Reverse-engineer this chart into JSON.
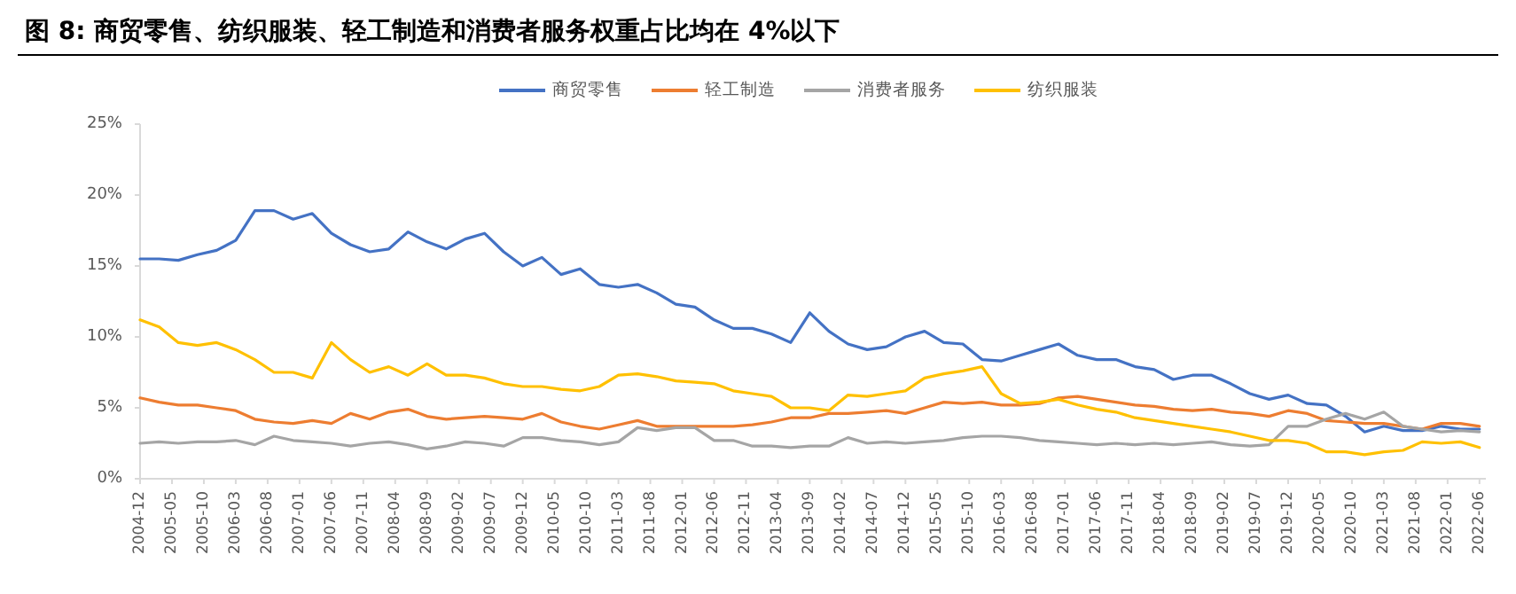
{
  "chart_data": {
    "type": "line",
    "title": "图 8: 商贸零售、纺织服装、轻工制造和消费者服务权重占比均在 4%以下",
    "x": [
      "2004-12",
      "2005-03",
      "2005-06",
      "2005-09",
      "2005-12",
      "2006-03",
      "2006-06",
      "2006-09",
      "2006-12",
      "2007-03",
      "2007-06",
      "2007-09",
      "2007-12",
      "2008-03",
      "2008-06",
      "2008-09",
      "2008-12",
      "2009-03",
      "2009-06",
      "2009-09",
      "2009-12",
      "2010-03",
      "2010-06",
      "2010-09",
      "2010-12",
      "2011-03",
      "2011-06",
      "2011-09",
      "2011-12",
      "2012-03",
      "2012-06",
      "2012-09",
      "2012-12",
      "2013-03",
      "2013-06",
      "2013-09",
      "2013-12",
      "2014-03",
      "2014-06",
      "2014-09",
      "2014-12",
      "2015-03",
      "2015-06",
      "2015-09",
      "2015-12",
      "2016-03",
      "2016-06",
      "2016-09",
      "2016-12",
      "2017-03",
      "2017-06",
      "2017-09",
      "2017-12",
      "2018-03",
      "2018-06",
      "2018-09",
      "2018-12",
      "2019-03",
      "2019-06",
      "2019-09",
      "2019-12",
      "2020-03",
      "2020-06",
      "2020-09",
      "2020-12",
      "2021-03",
      "2021-06",
      "2021-09",
      "2021-12",
      "2022-03",
      "2022-06"
    ],
    "series": [
      {
        "name": "商贸零售",
        "color": "#4472c4",
        "values": [
          15.5,
          15.5,
          15.4,
          15.8,
          16.1,
          16.8,
          18.9,
          18.9,
          18.3,
          18.7,
          17.3,
          16.5,
          16.0,
          16.2,
          17.4,
          16.7,
          16.2,
          16.9,
          17.3,
          16.0,
          15.0,
          15.6,
          14.4,
          14.8,
          13.7,
          13.5,
          13.7,
          13.1,
          12.3,
          12.1,
          11.2,
          10.6,
          10.6,
          10.2,
          9.6,
          11.7,
          10.4,
          9.5,
          9.1,
          9.3,
          10.0,
          10.4,
          9.6,
          9.5,
          8.4,
          8.3,
          8.7,
          9.1,
          9.5,
          8.7,
          8.4,
          8.4,
          7.9,
          7.7,
          7.0,
          7.3,
          7.3,
          6.7,
          6.0,
          5.6,
          5.9,
          5.3,
          5.2,
          4.4,
          3.3,
          3.7,
          3.4,
          3.4,
          3.7,
          3.5,
          3.5
        ]
      },
      {
        "name": "轻工制造",
        "color": "#ed7d31",
        "values": [
          5.7,
          5.4,
          5.2,
          5.2,
          5.0,
          4.8,
          4.2,
          4.0,
          3.9,
          4.1,
          3.9,
          4.6,
          4.2,
          4.7,
          4.9,
          4.4,
          4.2,
          4.3,
          4.4,
          4.3,
          4.2,
          4.6,
          4.0,
          3.7,
          3.5,
          3.8,
          4.1,
          3.7,
          3.7,
          3.7,
          3.7,
          3.7,
          3.8,
          4.0,
          4.3,
          4.3,
          4.6,
          4.6,
          4.7,
          4.8,
          4.6,
          5.0,
          5.4,
          5.3,
          5.4,
          5.2,
          5.2,
          5.3,
          5.7,
          5.8,
          5.6,
          5.4,
          5.2,
          5.1,
          4.9,
          4.8,
          4.9,
          4.7,
          4.6,
          4.4,
          4.8,
          4.6,
          4.1,
          4.0,
          3.9,
          3.9,
          3.7,
          3.5,
          3.9,
          3.9,
          3.7
        ]
      },
      {
        "name": "消费者服务",
        "color": "#a5a5a5",
        "values": [
          2.5,
          2.6,
          2.5,
          2.6,
          2.6,
          2.7,
          2.4,
          3.0,
          2.7,
          2.6,
          2.5,
          2.3,
          2.5,
          2.6,
          2.4,
          2.1,
          2.3,
          2.6,
          2.5,
          2.3,
          2.9,
          2.9,
          2.7,
          2.6,
          2.4,
          2.6,
          3.6,
          3.4,
          3.6,
          3.6,
          2.7,
          2.7,
          2.3,
          2.3,
          2.2,
          2.3,
          2.3,
          2.9,
          2.5,
          2.6,
          2.5,
          2.6,
          2.7,
          2.9,
          3.0,
          3.0,
          2.9,
          2.7,
          2.6,
          2.5,
          2.4,
          2.5,
          2.4,
          2.5,
          2.4,
          2.5,
          2.6,
          2.4,
          2.3,
          2.4,
          3.7,
          3.7,
          4.2,
          4.6,
          4.2,
          4.7,
          3.7,
          3.5,
          3.3,
          3.4,
          3.3
        ]
      },
      {
        "name": "纺织服装",
        "color": "#ffc000",
        "values": [
          11.2,
          10.7,
          9.6,
          9.4,
          9.6,
          9.1,
          8.4,
          7.5,
          7.5,
          7.1,
          9.6,
          8.4,
          7.5,
          7.9,
          7.3,
          8.1,
          7.3,
          7.3,
          7.1,
          6.7,
          6.5,
          6.5,
          6.3,
          6.2,
          6.5,
          7.3,
          7.4,
          7.2,
          6.9,
          6.8,
          6.7,
          6.2,
          6.0,
          5.8,
          5.0,
          5.0,
          4.8,
          5.9,
          5.8,
          6.0,
          6.2,
          7.1,
          7.4,
          7.6,
          7.9,
          6.0,
          5.3,
          5.4,
          5.6,
          5.2,
          4.9,
          4.7,
          4.3,
          4.1,
          3.9,
          3.7,
          3.5,
          3.3,
          3.0,
          2.7,
          2.7,
          2.5,
          1.9,
          1.9,
          1.7,
          1.9,
          2.0,
          2.6,
          2.5,
          2.6,
          2.2
        ]
      }
    ],
    "xlim": [
      "2004-12",
      "2022-07"
    ],
    "xticks": [
      "2004-12",
      "2005-05",
      "2005-10",
      "2006-03",
      "2006-08",
      "2007-01",
      "2007-06",
      "2007-11",
      "2008-04",
      "2008-09",
      "2009-02",
      "2009-07",
      "2009-12",
      "2010-05",
      "2010-10",
      "2011-03",
      "2011-08",
      "2012-01",
      "2012-06",
      "2012-11",
      "2013-04",
      "2013-09",
      "2014-02",
      "2014-07",
      "2014-12",
      "2015-05",
      "2015-10",
      "2016-03",
      "2016-08",
      "2017-01",
      "2017-06",
      "2017-11",
      "2018-04",
      "2018-09",
      "2019-02",
      "2019-07",
      "2019-12",
      "2020-05",
      "2020-10",
      "2021-03",
      "2021-08",
      "2022-01",
      "2022-06"
    ],
    "ylim": [
      0,
      25
    ],
    "yticks": [
      {
        "value": 0,
        "label": "0%"
      },
      {
        "value": 5,
        "label": "5%"
      },
      {
        "value": 10,
        "label": "10%"
      },
      {
        "value": 15,
        "label": "15%"
      },
      {
        "value": 20,
        "label": "20%"
      },
      {
        "value": 25,
        "label": "25%"
      }
    ],
    "legend": "top",
    "line_style": "solid",
    "marker": "none"
  }
}
